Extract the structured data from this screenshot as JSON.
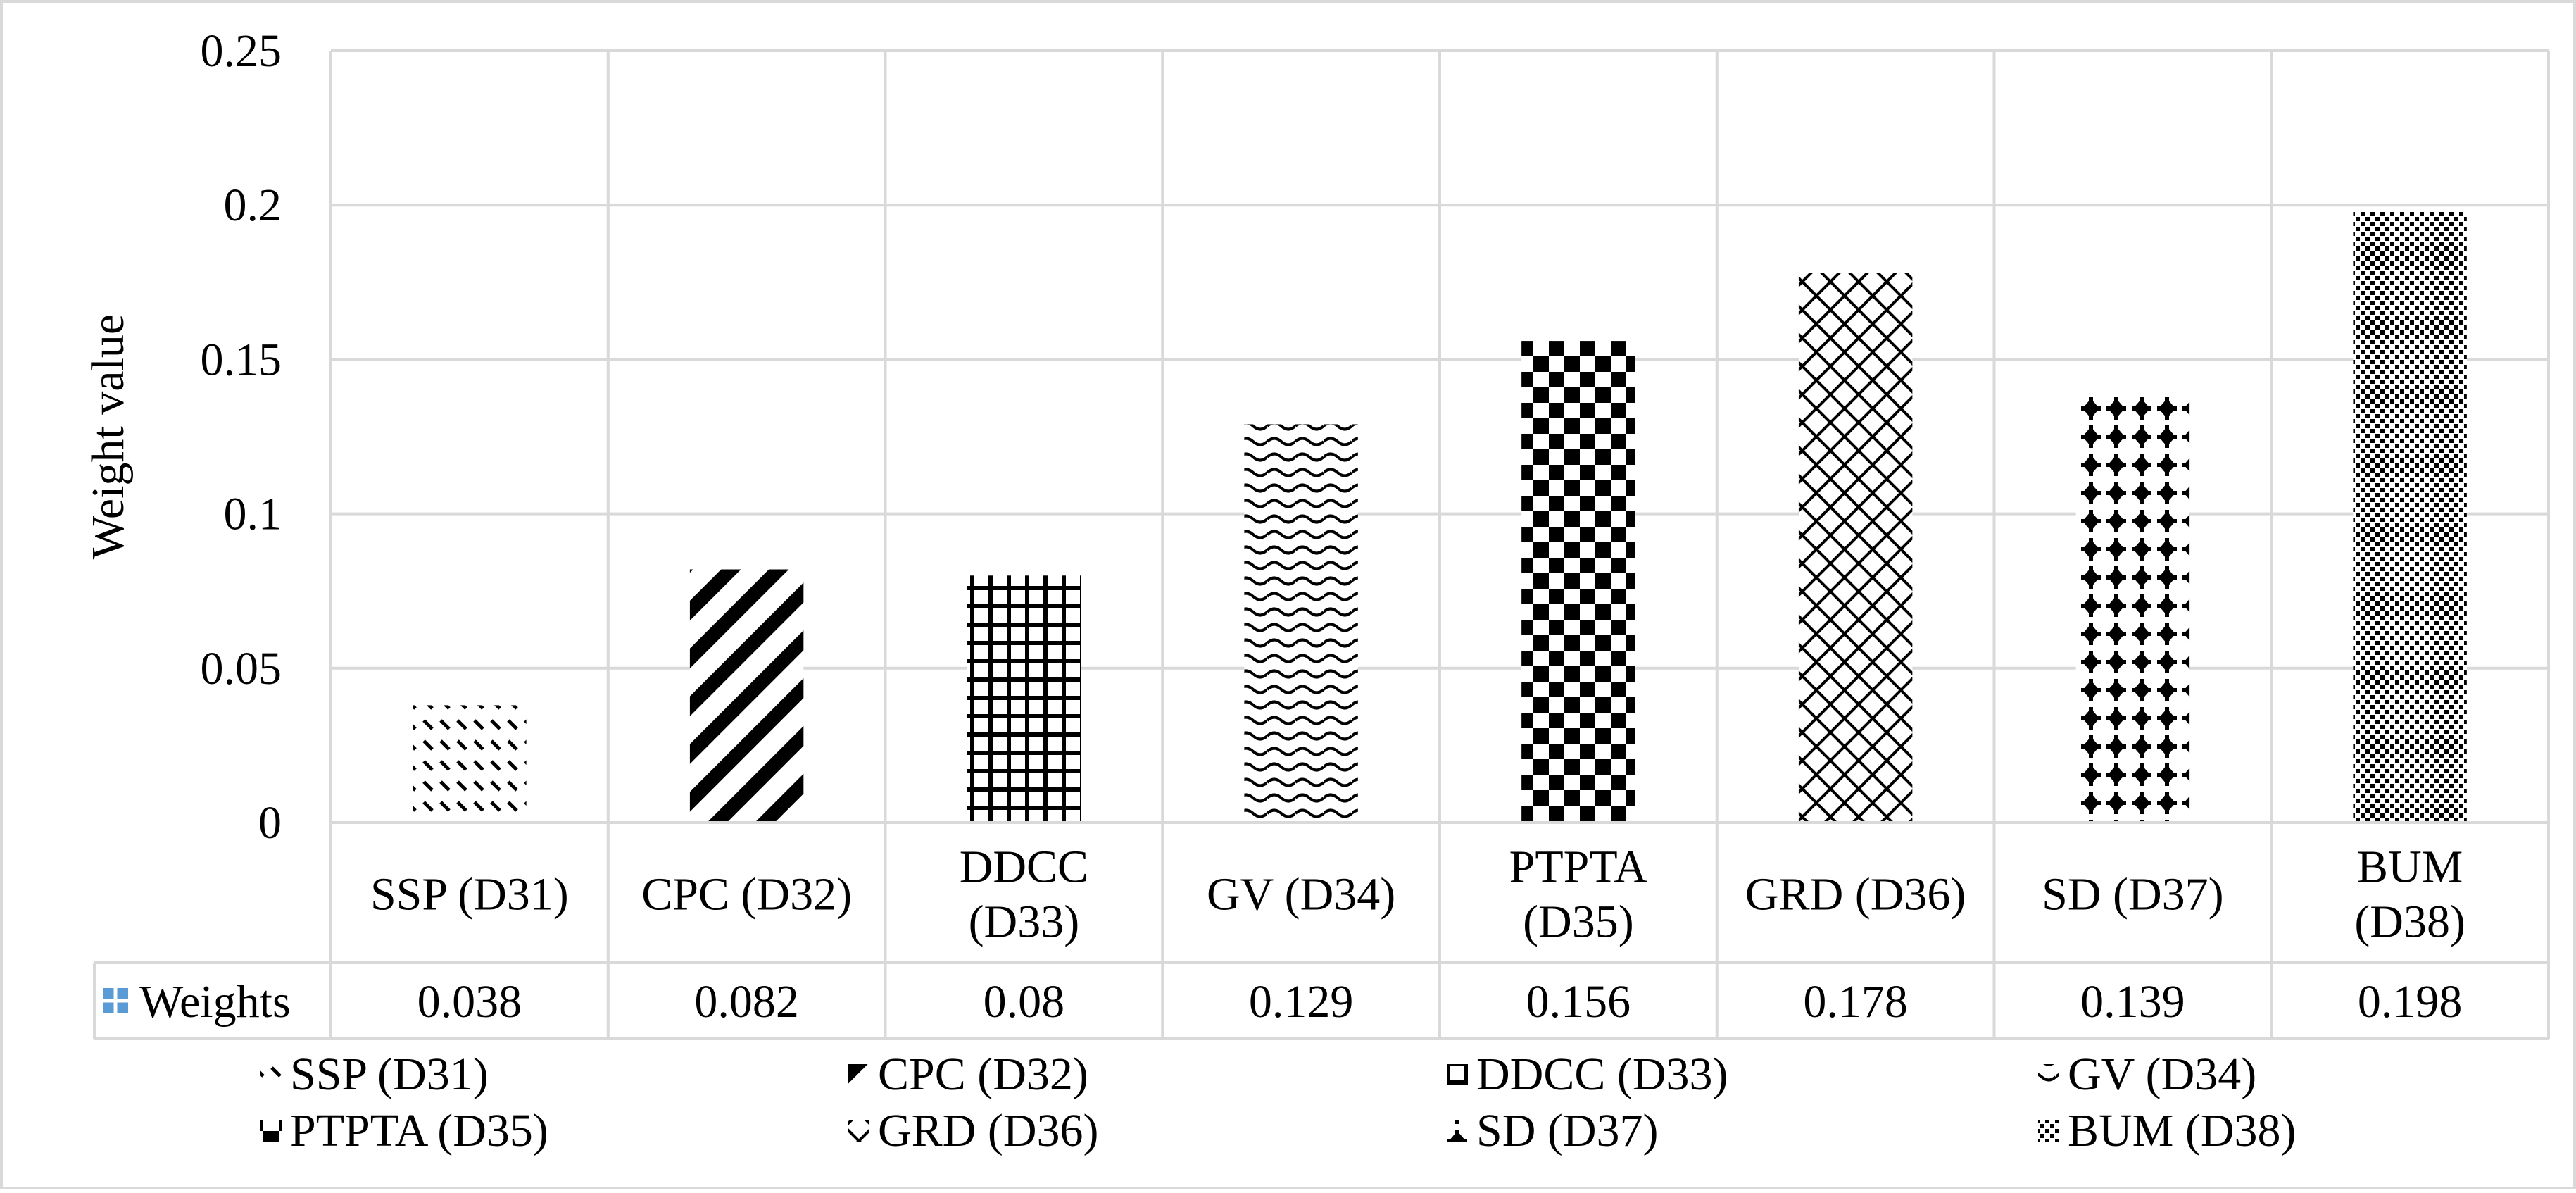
{
  "chart_data": {
    "type": "bar",
    "title": "",
    "xlabel": "",
    "ylabel": "Weight value",
    "ylim": [
      0,
      0.25
    ],
    "yticks": [
      0,
      0.05,
      0.1,
      0.15,
      0.2,
      0.25
    ],
    "ytick_labels": [
      "0",
      "0.05",
      "0.1",
      "0.15",
      "0.2",
      "0.25"
    ],
    "grid": true,
    "series_name": "Weights",
    "categories": [
      {
        "lines": [
          "SSP (D31)"
        ],
        "legend": "SSP (D31)",
        "pattern": "dash-diag"
      },
      {
        "lines": [
          "CPC (D32)"
        ],
        "legend": "CPC (D32)",
        "pattern": "wide-diagonal"
      },
      {
        "lines": [
          "DDCC",
          "(D33)"
        ],
        "legend": "DDCC (D33)",
        "pattern": "grid"
      },
      {
        "lines": [
          "GV (D34)"
        ],
        "legend": "GV (D34)",
        "pattern": "wave"
      },
      {
        "lines": [
          "PTPTA",
          "(D35)"
        ],
        "legend": "PTPTA (D35)",
        "pattern": "checker"
      },
      {
        "lines": [
          "GRD (D36)"
        ],
        "legend": "GRD (D36)",
        "pattern": "trellis"
      },
      {
        "lines": [
          "SD (D37)"
        ],
        "legend": "SD (D37)",
        "pattern": "plus-dot"
      },
      {
        "lines": [
          "BUM",
          "(D38)"
        ],
        "legend": "BUM (D38)",
        "pattern": "dense-dots"
      }
    ],
    "values": [
      0.038,
      0.082,
      0.08,
      0.129,
      0.156,
      0.178,
      0.139,
      0.198
    ],
    "value_labels": [
      "0.038",
      "0.082",
      "0.08",
      "0.129",
      "0.156",
      "0.178",
      "0.139",
      "0.198"
    ],
    "data_table": true,
    "legend_position": "bottom",
    "series_color": "#5b9bd5"
  }
}
